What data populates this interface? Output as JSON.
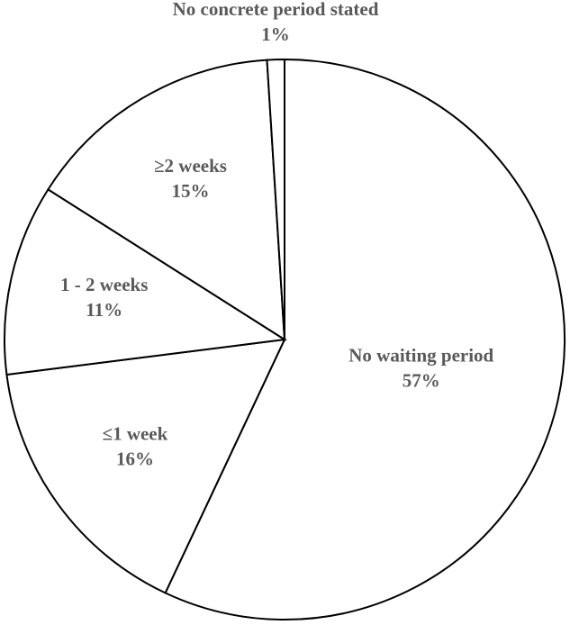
{
  "chart_data": {
    "type": "pie",
    "categories": [
      "No waiting period",
      "≤1 week",
      "1 - 2 weeks",
      "≥2 weeks",
      "No concrete period stated"
    ],
    "values": [
      57,
      16,
      11,
      15,
      1
    ],
    "value_labels": [
      "57%",
      "16%",
      "11%",
      "15%",
      "1%"
    ],
    "color": "#ffffff"
  }
}
